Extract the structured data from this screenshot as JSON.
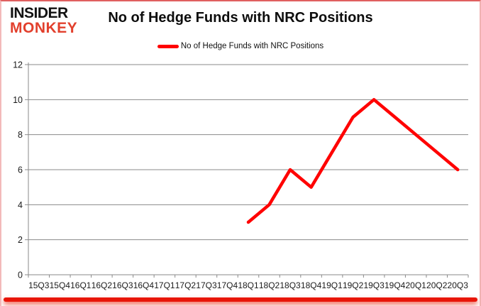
{
  "brand": {
    "line1": "INSIDER",
    "line2": "MONKEY",
    "red": "#e2402d"
  },
  "header": {
    "title": "No of Hedge Funds with NRC Positions"
  },
  "legend": {
    "label": "No of Hedge Funds with NRC Positions",
    "swatch_color": "#ff0000"
  },
  "chart_data": {
    "type": "line",
    "title": "No of Hedge Funds with NRC Positions",
    "categories": [
      "15Q3",
      "15Q4",
      "16Q1",
      "16Q2",
      "16Q3",
      "16Q4",
      "17Q1",
      "17Q2",
      "17Q3",
      "17Q4",
      "18Q1",
      "18Q2",
      "18Q3",
      "18Q4",
      "19Q1",
      "19Q2",
      "19Q3",
      "19Q4",
      "20Q1",
      "20Q2",
      "20Q3"
    ],
    "series": [
      {
        "name": "No of Hedge Funds with NRC Positions",
        "color": "#ff0000",
        "values": [
          null,
          null,
          null,
          null,
          null,
          null,
          null,
          null,
          null,
          null,
          3,
          4,
          6,
          5,
          7,
          9,
          10,
          9,
          8,
          7,
          6
        ]
      }
    ],
    "xlabel": "",
    "ylabel": "",
    "ylim": [
      0,
      12
    ],
    "yticks": [
      0,
      2,
      4,
      6,
      8,
      10,
      12
    ],
    "grid": true,
    "legend_position": "top-center"
  },
  "colors": {
    "line": "#ff0000",
    "grid": "#8a8a8a",
    "axis_line": "#8a8a8a",
    "tick_label": "#1a1a1a",
    "border_top": "#e06060",
    "border_side": "#f3baba",
    "bottom_bar": "#e81508"
  }
}
